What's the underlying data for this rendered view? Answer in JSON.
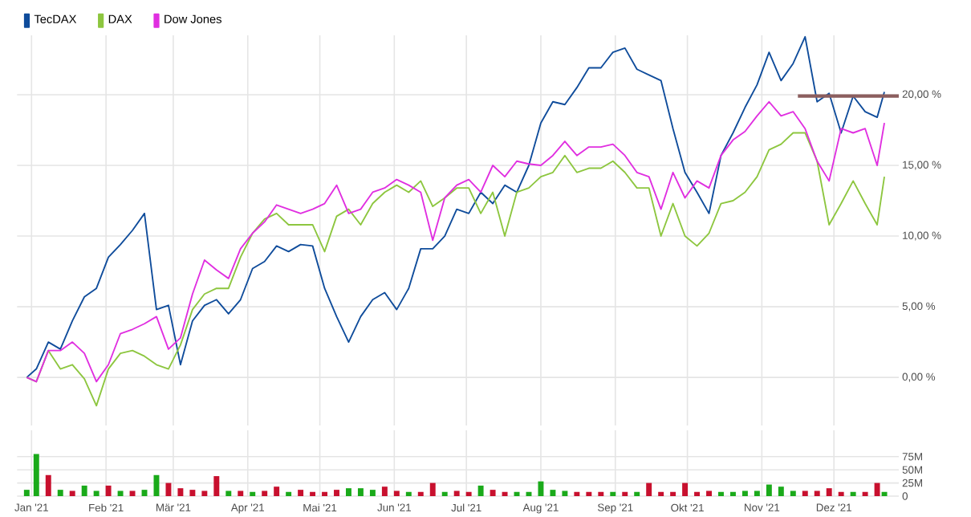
{
  "chart_data": [
    {
      "type": "line",
      "legend": "top left",
      "grid": true,
      "tick_labels": "y",
      "xlim": [
        "2020-12-26",
        "2021-12-28"
      ],
      "ylim": [
        -3.4,
        24.2
      ],
      "xticks": [
        {
          "value": "2021-01-01",
          "label": null
        },
        {
          "value": "2021-02-01",
          "label": null
        },
        {
          "value": "2021-03-01",
          "label": null
        },
        {
          "value": "2021-04-01",
          "label": null
        },
        {
          "value": "2021-05-01",
          "label": null
        },
        {
          "value": "2021-06-01",
          "label": null
        },
        {
          "value": "2021-07-01",
          "label": null
        },
        {
          "value": "2021-08-01",
          "label": null
        },
        {
          "value": "2021-09-01",
          "label": null
        },
        {
          "value": "2021-10-01",
          "label": null
        },
        {
          "value": "2021-11-01",
          "label": null
        },
        {
          "value": "2021-12-01",
          "label": null
        }
      ],
      "yticks": [
        {
          "value": 0,
          "label": "0,00 %"
        },
        {
          "value": 5,
          "label": "5,00 %"
        },
        {
          "value": 10,
          "label": "10,00 %"
        },
        {
          "value": 15,
          "label": "15,00 %"
        },
        {
          "value": 20,
          "label": "20,00 %"
        }
      ],
      "x": [
        "2020-12-30",
        "2021-01-03",
        "2021-01-08",
        "2021-01-13",
        "2021-01-18",
        "2021-01-23",
        "2021-01-28",
        "2021-02-02",
        "2021-02-07",
        "2021-02-12",
        "2021-02-17",
        "2021-02-22",
        "2021-02-27",
        "2021-03-04",
        "2021-03-09",
        "2021-03-14",
        "2021-03-19",
        "2021-03-24",
        "2021-03-29",
        "2021-04-03",
        "2021-04-08",
        "2021-04-13",
        "2021-04-18",
        "2021-04-23",
        "2021-04-28",
        "2021-05-03",
        "2021-05-08",
        "2021-05-13",
        "2021-05-18",
        "2021-05-23",
        "2021-05-28",
        "2021-06-02",
        "2021-06-07",
        "2021-06-12",
        "2021-06-17",
        "2021-06-22",
        "2021-06-27",
        "2021-07-02",
        "2021-07-07",
        "2021-07-12",
        "2021-07-17",
        "2021-07-22",
        "2021-07-27",
        "2021-08-01",
        "2021-08-06",
        "2021-08-11",
        "2021-08-16",
        "2021-08-21",
        "2021-08-26",
        "2021-08-31",
        "2021-09-05",
        "2021-09-10",
        "2021-09-15",
        "2021-09-20",
        "2021-09-25",
        "2021-09-30",
        "2021-10-05",
        "2021-10-10",
        "2021-10-15",
        "2021-10-20",
        "2021-10-25",
        "2021-10-30",
        "2021-11-04",
        "2021-11-09",
        "2021-11-14",
        "2021-11-19",
        "2021-11-24",
        "2021-11-29",
        "2021-12-04",
        "2021-12-09",
        "2021-12-14",
        "2021-12-19",
        "2021-12-22"
      ],
      "series": [
        {
          "name": "TecDAX",
          "color": "#0f4c9b",
          "values": [
            0.0,
            0.6,
            2.5,
            2.0,
            4.0,
            5.7,
            6.3,
            8.5,
            9.4,
            10.4,
            11.6,
            4.8,
            5.1,
            0.9,
            4.0,
            5.1,
            5.5,
            4.5,
            5.5,
            7.7,
            8.2,
            9.3,
            8.9,
            9.4,
            9.3,
            6.3,
            4.3,
            2.5,
            4.3,
            5.5,
            6.0,
            4.8,
            6.3,
            9.1,
            9.1,
            10.0,
            11.9,
            11.6,
            13.1,
            12.3,
            13.6,
            13.1,
            15.0,
            18.0,
            19.5,
            19.3,
            20.5,
            21.9,
            21.9,
            23.0,
            23.3,
            21.8,
            21.4,
            21.0,
            17.6,
            14.5,
            13.1,
            11.6,
            15.7,
            17.3,
            19.1,
            20.7,
            23.0,
            21.0,
            22.2,
            24.1,
            19.5,
            20.1,
            17.3,
            19.9,
            18.8,
            18.4,
            20.2
          ]
        },
        {
          "name": "DAX",
          "color": "#8dc63f",
          "values": [
            0.0,
            -0.3,
            1.9,
            0.6,
            0.9,
            -0.1,
            -2.0,
            0.6,
            1.7,
            1.9,
            1.5,
            0.9,
            0.6,
            2.3,
            4.8,
            5.9,
            6.3,
            6.3,
            8.5,
            10.2,
            11.2,
            11.6,
            10.8,
            10.8,
            10.8,
            8.9,
            11.4,
            11.9,
            10.8,
            12.3,
            13.1,
            13.6,
            13.1,
            13.9,
            12.1,
            12.7,
            13.4,
            13.4,
            11.6,
            13.1,
            10.0,
            13.1,
            13.4,
            14.2,
            14.5,
            15.7,
            14.5,
            14.8,
            14.8,
            15.3,
            14.5,
            13.4,
            13.4,
            10.0,
            12.3,
            10.0,
            9.3,
            10.2,
            12.3,
            12.5,
            13.1,
            14.2,
            16.1,
            16.5,
            17.3,
            17.3,
            15.3,
            10.8,
            12.3,
            13.9,
            12.3,
            10.8,
            14.2
          ]
        },
        {
          "name": "Dow Jones",
          "color": "#e02fe0",
          "values": [
            0.0,
            -0.3,
            1.9,
            1.9,
            2.5,
            1.7,
            -0.3,
            0.9,
            3.1,
            3.4,
            3.8,
            4.3,
            2.0,
            2.8,
            5.9,
            8.3,
            7.6,
            7.0,
            9.1,
            10.2,
            11.0,
            12.2,
            11.9,
            11.6,
            11.9,
            12.3,
            13.6,
            11.6,
            11.9,
            13.1,
            13.4,
            14.0,
            13.6,
            13.1,
            9.7,
            12.7,
            13.6,
            14.0,
            13.1,
            15.0,
            14.2,
            15.3,
            15.1,
            15.0,
            15.7,
            16.7,
            15.7,
            16.3,
            16.3,
            16.5,
            15.7,
            14.5,
            14.2,
            11.9,
            14.5,
            12.7,
            13.9,
            13.4,
            15.7,
            16.8,
            17.4,
            18.5,
            19.5,
            18.5,
            18.8,
            17.6,
            15.3,
            13.9,
            17.6,
            17.3,
            17.6,
            15.0,
            18.0
          ]
        },
        {
          "color": "#8b5e5e",
          "x": [
            "2021-11-16",
            "2021-12-28"
          ],
          "values": [
            19.9,
            19.9
          ]
        }
      ]
    },
    {
      "type": "bar",
      "grid": true,
      "xlim": [
        "2020-12-26",
        "2021-12-28"
      ],
      "ylim": [
        0,
        125
      ],
      "xticks": [
        {
          "value": "2021-01-01",
          "label": "Jan '21"
        },
        {
          "value": "2021-02-01",
          "label": "Feb '21"
        },
        {
          "value": "2021-03-01",
          "label": "Mär '21"
        },
        {
          "value": "2021-04-01",
          "label": "Apr '21"
        },
        {
          "value": "2021-05-01",
          "label": "Mai '21"
        },
        {
          "value": "2021-06-01",
          "label": "Jun '21"
        },
        {
          "value": "2021-07-01",
          "label": "Jul '21"
        },
        {
          "value": "2021-08-01",
          "label": "Aug '21"
        },
        {
          "value": "2021-09-01",
          "label": "Sep '21"
        },
        {
          "value": "2021-10-01",
          "label": "Okt '21"
        },
        {
          "value": "2021-11-01",
          "label": "Nov '21"
        },
        {
          "value": "2021-12-01",
          "label": "Dez '21"
        }
      ],
      "yticks": [
        0,
        {
          "value": 25,
          "label": "25M"
        },
        {
          "value": 50,
          "label": "50M"
        },
        {
          "value": 75,
          "label": "75M"
        }
      ],
      "series": [
        {
          "color": "#1aaa1a",
          "x": [
            "2020-12-30",
            "2021-01-03",
            "2021-01-13",
            "2021-01-23",
            "2021-01-28",
            "2021-02-07",
            "2021-02-17",
            "2021-02-22",
            "2021-03-24",
            "2021-04-03",
            "2021-04-18",
            "2021-05-13",
            "2021-05-18",
            "2021-05-23",
            "2021-06-07",
            "2021-06-22",
            "2021-07-07",
            "2021-07-22",
            "2021-07-27",
            "2021-08-01",
            "2021-08-06",
            "2021-08-11",
            "2021-08-31",
            "2021-09-10",
            "2021-10-15",
            "2021-10-20",
            "2021-10-25",
            "2021-10-30",
            "2021-11-04",
            "2021-11-09",
            "2021-11-14",
            "2021-12-09",
            "2021-12-22"
          ],
          "values": [
            12,
            80,
            12,
            20,
            10,
            10,
            12,
            40,
            10,
            8,
            8,
            15,
            15,
            12,
            8,
            8,
            20,
            8,
            8,
            28,
            12,
            10,
            8,
            8,
            8,
            8,
            10,
            10,
            22,
            18,
            10,
            8,
            8
          ]
        },
        {
          "color": "#c8102e",
          "x": [
            "2021-01-08",
            "2021-01-18",
            "2021-02-02",
            "2021-02-12",
            "2021-02-27",
            "2021-03-04",
            "2021-03-09",
            "2021-03-14",
            "2021-03-19",
            "2021-03-29",
            "2021-04-08",
            "2021-04-13",
            "2021-04-23",
            "2021-04-28",
            "2021-05-03",
            "2021-05-08",
            "2021-05-28",
            "2021-06-02",
            "2021-06-12",
            "2021-06-17",
            "2021-06-27",
            "2021-07-02",
            "2021-07-12",
            "2021-07-17",
            "2021-08-16",
            "2021-08-21",
            "2021-08-26",
            "2021-09-05",
            "2021-09-15",
            "2021-09-20",
            "2021-09-25",
            "2021-09-30",
            "2021-10-05",
            "2021-10-10",
            "2021-11-19",
            "2021-11-24",
            "2021-11-29",
            "2021-12-04",
            "2021-12-14",
            "2021-12-19"
          ],
          "values": [
            40,
            10,
            20,
            10,
            25,
            15,
            12,
            10,
            38,
            10,
            10,
            18,
            12,
            8,
            8,
            12,
            18,
            10,
            8,
            25,
            10,
            8,
            12,
            8,
            8,
            8,
            8,
            8,
            25,
            8,
            8,
            25,
            8,
            10,
            10,
            10,
            15,
            8,
            8,
            25
          ]
        }
      ]
    }
  ]
}
